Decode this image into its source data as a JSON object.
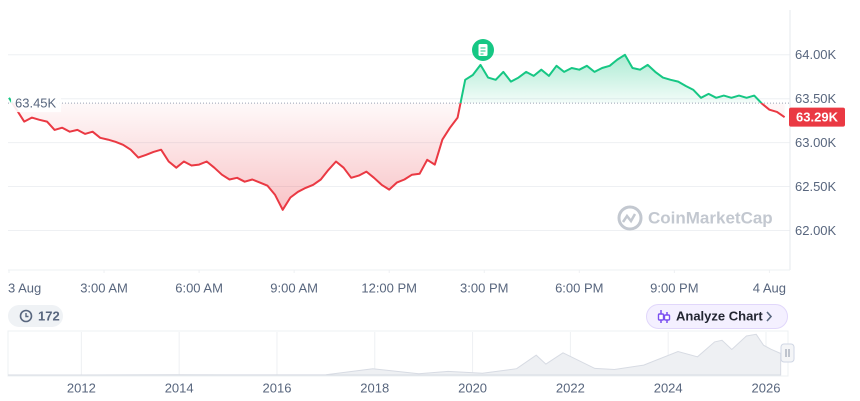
{
  "chart_data": {
    "type": "line",
    "x": [
      0,
      0.24,
      0.48,
      0.72,
      0.96,
      1.2,
      1.44,
      1.68,
      1.92,
      2.16,
      2.4,
      2.64,
      2.88,
      3.12,
      3.36,
      3.6,
      3.84,
      4.08,
      4.32,
      4.56,
      4.8,
      5.04,
      5.28,
      5.52,
      5.76,
      6,
      6.24,
      6.48,
      6.72,
      6.96,
      7.2,
      7.44,
      7.68,
      7.92,
      8.16,
      8.4,
      8.64,
      8.88,
      9.12,
      9.36,
      9.6,
      9.84,
      10.08,
      10.32,
      10.56,
      10.8,
      11.04,
      11.28,
      11.52,
      11.76,
      12,
      12.24,
      12.48,
      12.72,
      12.96,
      13.2,
      13.44,
      13.68,
      13.92,
      14.16,
      14.4,
      14.64,
      14.88,
      15.12,
      15.36,
      15.6,
      15.84,
      16.08,
      16.32,
      16.56,
      16.8,
      17.04,
      17.28,
      17.52,
      17.76,
      18,
      18.24,
      18.48,
      18.72,
      18.96,
      19.2,
      19.44,
      19.68,
      19.92,
      20.16,
      20.4,
      20.64,
      20.88,
      21.12,
      21.36,
      21.6,
      21.84,
      22.08,
      22.32,
      22.56,
      22.8,
      23.04,
      23.28,
      23.52,
      23.76,
      24,
      24.24,
      24.48
    ],
    "values": [
      63510,
      63375,
      63240,
      63285,
      63260,
      63240,
      63145,
      63170,
      63125,
      63145,
      63100,
      63125,
      63055,
      63035,
      63010,
      62975,
      62920,
      62830,
      62860,
      62895,
      62920,
      62785,
      62715,
      62785,
      62740,
      62750,
      62785,
      62715,
      62635,
      62580,
      62600,
      62555,
      62580,
      62545,
      62510,
      62405,
      62235,
      62375,
      62440,
      62485,
      62520,
      62580,
      62690,
      62785,
      62715,
      62600,
      62625,
      62670,
      62600,
      62520,
      62465,
      62545,
      62580,
      62635,
      62645,
      62805,
      62750,
      63035,
      63170,
      63285,
      63715,
      63770,
      63885,
      63740,
      63715,
      63805,
      63695,
      63740,
      63805,
      63760,
      63830,
      63760,
      63875,
      63805,
      63850,
      63830,
      63875,
      63805,
      63850,
      63875,
      63945,
      64000,
      63850,
      63830,
      63885,
      63805,
      63740,
      63715,
      63695,
      63645,
      63600,
      63510,
      63555,
      63510,
      63535,
      63510,
      63535,
      63510,
      63535,
      63445,
      63375,
      63350,
      63290
    ],
    "color_above": "#16c784",
    "color_below": "#ea3943",
    "baseline": {
      "value": 63450,
      "label": "63.45K"
    },
    "current_price": {
      "value": 63290,
      "label": "63.29K"
    },
    "xlim": [
      0,
      24.65
    ],
    "xticks": [
      {
        "value": 0,
        "label": "3 Aug"
      },
      {
        "value": 3,
        "label": "3:00 AM"
      },
      {
        "value": 6,
        "label": "6:00 AM"
      },
      {
        "value": 9,
        "label": "9:00 AM"
      },
      {
        "value": 12,
        "label": "12:00 PM"
      },
      {
        "value": 15,
        "label": "3:00 PM"
      },
      {
        "value": 18,
        "label": "6:00 PM"
      },
      {
        "value": 21,
        "label": "9:00 PM"
      },
      {
        "value": 24,
        "label": "4 Aug"
      }
    ],
    "ylim": [
      61550,
      64510
    ],
    "yticks": [
      {
        "value": 62000,
        "label": "62.00K"
      },
      {
        "value": 62500,
        "label": "62.50K"
      },
      {
        "value": 63000,
        "label": "63.00K"
      },
      {
        "value": 63500,
        "label": "63.50K"
      },
      {
        "value": 64000,
        "label": "64.00K"
      }
    ],
    "grid": true,
    "watermark": "CoinMarketCap",
    "history_button": "172",
    "analyze_button": "Analyze Chart",
    "navigator": {
      "x": [
        2010.5,
        2012,
        2013.9,
        2015,
        2017,
        2017.96,
        2018.9,
        2019.5,
        2020.2,
        2020.9,
        2021.3,
        2021.5,
        2021.85,
        2022.5,
        2022.9,
        2023.5,
        2024.2,
        2024.6,
        2024.95,
        2025.1,
        2025.3,
        2025.6,
        2025.8,
        2025.95,
        2026.1,
        2026.3
      ],
      "values": [
        0,
        10,
        1000,
        300,
        1000,
        19000,
        4000,
        11000,
        5000,
        19000,
        60000,
        33000,
        67000,
        20000,
        16500,
        30000,
        71000,
        55000,
        100000,
        105000,
        77000,
        118000,
        123000,
        90000,
        78000,
        65000
      ],
      "xlim": [
        2010.5,
        2026.45
      ],
      "ylim": [
        0,
        130000
      ],
      "xticks": [
        2012,
        2014,
        2016,
        2018,
        2020,
        2022,
        2024,
        2026
      ]
    }
  }
}
